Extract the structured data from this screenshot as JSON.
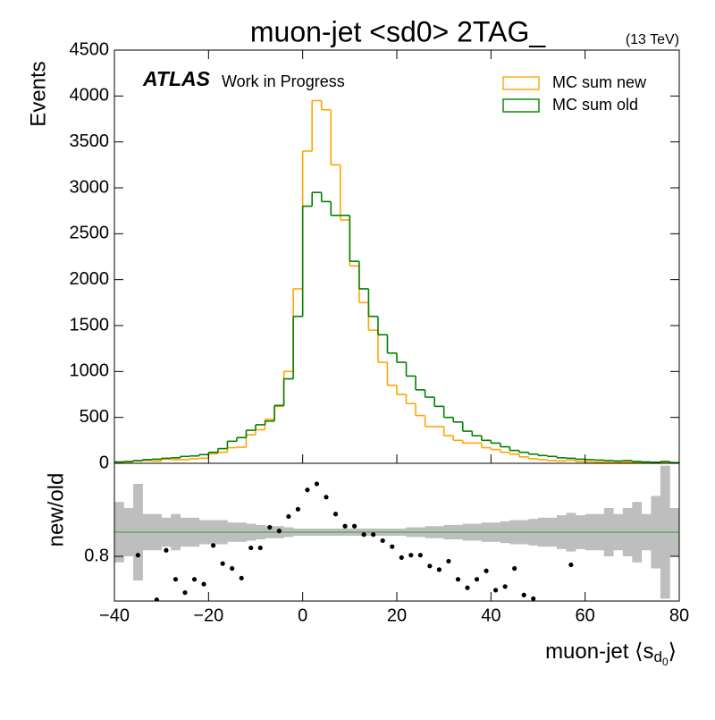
{
  "chart_data": [
    {
      "type": "histogram",
      "title": "muon-jet <sd0> 2TAG_",
      "energy": "(13 TeV)",
      "atlas": "ATLAS",
      "status": "Work in Progress",
      "ylabel": "Events",
      "bins": [
        -40,
        -38,
        -36,
        -34,
        -32,
        -30,
        -28,
        -26,
        -24,
        -22,
        -20,
        -18,
        -16,
        -14,
        -12,
        -10,
        -8,
        -6,
        -4,
        -2,
        0,
        2,
        4,
        6,
        8,
        10,
        12,
        14,
        16,
        18,
        20,
        22,
        24,
        26,
        28,
        30,
        32,
        34,
        36,
        38,
        40,
        42,
        44,
        46,
        48,
        50,
        52,
        54,
        56,
        58,
        60,
        62,
        64,
        66,
        68,
        70,
        72,
        74,
        76,
        78,
        80
      ],
      "series": [
        {
          "name": "MC sum new",
          "color": "#ffa500",
          "values": [
            10,
            15,
            25,
            30,
            25,
            45,
            40,
            40,
            50,
            55,
            105,
            120,
            170,
            175,
            310,
            365,
            480,
            620,
            1000,
            1900,
            3400,
            3950,
            3850,
            3250,
            2650,
            2150,
            1750,
            1450,
            1100,
            850,
            750,
            650,
            520,
            400,
            400,
            300,
            250,
            220,
            220,
            170,
            150,
            120,
            100,
            70,
            50,
            40,
            30,
            25,
            35,
            20,
            15,
            12,
            10,
            10,
            12,
            8,
            6,
            5,
            10,
            4
          ]
        },
        {
          "name": "MC sum old",
          "color": "#008000",
          "values": [
            15,
            20,
            30,
            40,
            45,
            55,
            60,
            75,
            80,
            95,
            120,
            160,
            240,
            280,
            360,
            420,
            460,
            630,
            920,
            1600,
            2800,
            2950,
            2850,
            2700,
            2700,
            2200,
            1900,
            1600,
            1400,
            1200,
            1100,
            950,
            800,
            720,
            620,
            500,
            450,
            350,
            300,
            250,
            220,
            180,
            140,
            120,
            100,
            85,
            75,
            60,
            55,
            45,
            40,
            35,
            30,
            25,
            30,
            20,
            15,
            12,
            20,
            8
          ]
        }
      ],
      "xlim": [
        -40,
        80
      ],
      "ylim": [
        0,
        4500
      ],
      "yticks": [
        0,
        500,
        1000,
        1500,
        2000,
        2500,
        3000,
        3500,
        4000,
        4500
      ],
      "legend": "upper right"
    },
    {
      "type": "ratio",
      "ylabel": "new/old",
      "xlabel": {
        "main": "muon-jet ⟨s",
        "sub": "d",
        "subsub": "0",
        "close": "⟩"
      },
      "x": [
        -39,
        -37,
        -35,
        -33,
        -31,
        -29,
        -27,
        -25,
        -23,
        -21,
        -19,
        -17,
        -15,
        -13,
        -11,
        -9,
        -7,
        -5,
        -3,
        -1,
        1,
        3,
        5,
        7,
        9,
        11,
        13,
        15,
        17,
        19,
        21,
        23,
        25,
        27,
        29,
        31,
        33,
        35,
        37,
        39,
        41,
        43,
        45,
        47,
        49,
        51,
        53,
        55,
        57,
        59,
        61,
        63,
        65,
        67,
        69,
        71,
        73,
        75,
        77,
        79
      ],
      "values": [
        null,
        null,
        0.81,
        null,
        0.44,
        0.85,
        0.61,
        0.5,
        0.61,
        0.57,
        0.89,
        0.74,
        0.7,
        0.62,
        0.87,
        0.87,
        1.04,
        1.01,
        1.13,
        1.19,
        1.35,
        1.4,
        1.29,
        1.15,
        1.05,
        1.05,
        0.98,
        0.98,
        0.93,
        0.88,
        0.79,
        0.81,
        0.81,
        0.72,
        0.69,
        0.76,
        0.61,
        0.54,
        0.61,
        0.68,
        0.52,
        0.55,
        0.7,
        0.48,
        0.45,
        null,
        null,
        null,
        0.73,
        null,
        null,
        null,
        null,
        null,
        null,
        null,
        null,
        null,
        null,
        null
      ],
      "band": [
        0.25,
        0.2,
        0.4,
        0.15,
        0.15,
        0.12,
        0.15,
        0.12,
        0.12,
        0.1,
        0.1,
        0.1,
        0.08,
        0.08,
        0.07,
        0.06,
        0.05,
        0.05,
        0.04,
        0.03,
        0.03,
        0.03,
        0.03,
        0.03,
        0.03,
        0.03,
        0.03,
        0.03,
        0.03,
        0.03,
        0.03,
        0.04,
        0.04,
        0.05,
        0.05,
        0.06,
        0.06,
        0.07,
        0.07,
        0.08,
        0.08,
        0.09,
        0.1,
        0.1,
        0.11,
        0.12,
        0.12,
        0.14,
        0.16,
        0.14,
        0.15,
        0.15,
        0.2,
        0.15,
        0.2,
        0.25,
        0.15,
        0.3,
        0.55,
        0.2
      ],
      "band_color": "#bebebe",
      "ref": 1,
      "ref_color": "#2ca02c",
      "point_color": "#000000",
      "xlim": [
        -40,
        80
      ],
      "ylim": [
        0.43,
        1.57
      ],
      "yticks": [
        0.8
      ],
      "xticks": [
        {
          "value": -40,
          "label": "−40"
        },
        {
          "value": -20,
          "label": "−20"
        },
        0,
        20,
        40,
        60,
        80
      ]
    }
  ]
}
